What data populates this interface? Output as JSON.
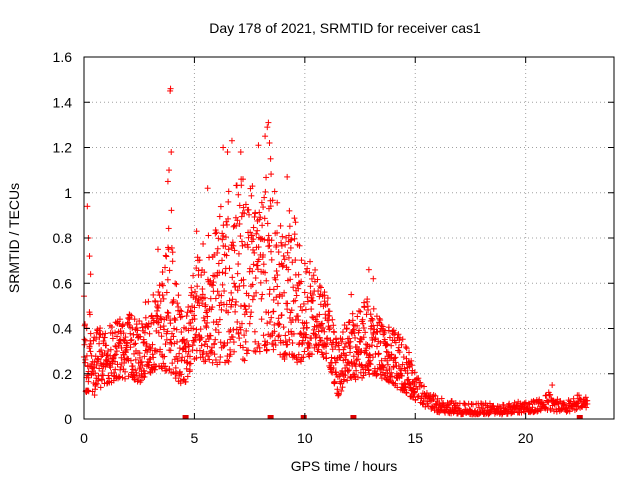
{
  "chart_data": {
    "type": "scatter",
    "title": "Day 178 of 2021, SRMTID for receiver cas1",
    "xlabel": "GPS time / hours",
    "ylabel": "SRMTID / TECUs",
    "xlim": [
      0,
      24
    ],
    "ylim": [
      0,
      1.6
    ],
    "xticks": [
      0,
      5,
      10,
      15,
      20
    ],
    "xtick_labels": [
      "0",
      "5",
      "10",
      "15",
      "20"
    ],
    "yticks": [
      0,
      0.2,
      0.4,
      0.6,
      0.8,
      1.0,
      1.2,
      1.4,
      1.6
    ],
    "ytick_labels": [
      "0",
      "0.2",
      "0.4",
      "0.6",
      "0.8",
      "1",
      "1.2",
      "1.4",
      "1.6"
    ],
    "grid": true,
    "marker": "+",
    "color": "#ff0000",
    "gap_markers_x": [
      4.6,
      8.45,
      9.95,
      12.2,
      22.45
    ],
    "envelope": {
      "x": [
        0.0,
        0.5,
        1.0,
        1.5,
        2.0,
        2.5,
        3.0,
        3.5,
        4.0,
        4.5,
        5.0,
        5.5,
        6.0,
        6.5,
        7.0,
        7.5,
        8.0,
        8.5,
        9.0,
        9.5,
        10.0,
        10.5,
        11.0,
        11.5,
        12.0,
        12.5,
        13.0,
        13.5,
        14.0,
        14.5,
        15.0,
        15.5,
        16.0,
        17.0,
        18.0,
        19.0,
        20.0,
        20.5,
        21.0,
        21.5,
        22.0,
        22.5,
        22.8
      ],
      "low": [
        0.12,
        0.1,
        0.14,
        0.17,
        0.18,
        0.16,
        0.2,
        0.22,
        0.2,
        0.14,
        0.26,
        0.25,
        0.24,
        0.25,
        0.26,
        0.25,
        0.3,
        0.3,
        0.27,
        0.24,
        0.26,
        0.3,
        0.26,
        0.1,
        0.18,
        0.17,
        0.2,
        0.18,
        0.15,
        0.12,
        0.08,
        0.05,
        0.03,
        0.02,
        0.02,
        0.02,
        0.03,
        0.03,
        0.04,
        0.03,
        0.03,
        0.05,
        0.05
      ],
      "high": [
        0.55,
        0.42,
        0.4,
        0.45,
        0.48,
        0.48,
        0.55,
        0.62,
        0.95,
        0.4,
        0.7,
        0.8,
        0.9,
        1.0,
        1.05,
        1.1,
        1.05,
        1.1,
        0.8,
        0.9,
        0.72,
        0.68,
        0.55,
        0.38,
        0.45,
        0.5,
        0.55,
        0.42,
        0.4,
        0.38,
        0.2,
        0.14,
        0.1,
        0.07,
        0.07,
        0.07,
        0.08,
        0.09,
        0.12,
        0.09,
        0.1,
        0.11,
        0.1
      ]
    },
    "outliers": [
      {
        "x": 0.15,
        "y": 0.94
      },
      {
        "x": 0.2,
        "y": 0.8
      },
      {
        "x": 0.25,
        "y": 0.72
      },
      {
        "x": 0.3,
        "y": 0.64
      },
      {
        "x": 3.35,
        "y": 0.75
      },
      {
        "x": 3.8,
        "y": 1.05
      },
      {
        "x": 3.85,
        "y": 1.1
      },
      {
        "x": 3.9,
        "y": 1.45
      },
      {
        "x": 3.92,
        "y": 1.46
      },
      {
        "x": 3.95,
        "y": 1.18
      },
      {
        "x": 5.1,
        "y": 0.83
      },
      {
        "x": 5.6,
        "y": 1.02
      },
      {
        "x": 6.3,
        "y": 1.2
      },
      {
        "x": 6.5,
        "y": 1.18
      },
      {
        "x": 6.7,
        "y": 1.23
      },
      {
        "x": 7.1,
        "y": 1.18
      },
      {
        "x": 7.2,
        "y": 1.06
      },
      {
        "x": 7.9,
        "y": 1.21
      },
      {
        "x": 8.2,
        "y": 1.25
      },
      {
        "x": 8.3,
        "y": 1.29
      },
      {
        "x": 8.35,
        "y": 1.31
      },
      {
        "x": 8.4,
        "y": 1.22
      },
      {
        "x": 8.45,
        "y": 1.15
      },
      {
        "x": 9.2,
        "y": 1.07
      },
      {
        "x": 9.3,
        "y": 0.92
      },
      {
        "x": 12.1,
        "y": 0.55
      },
      {
        "x": 12.9,
        "y": 0.66
      },
      {
        "x": 13.1,
        "y": 0.62
      },
      {
        "x": 21.2,
        "y": 0.15
      }
    ]
  }
}
